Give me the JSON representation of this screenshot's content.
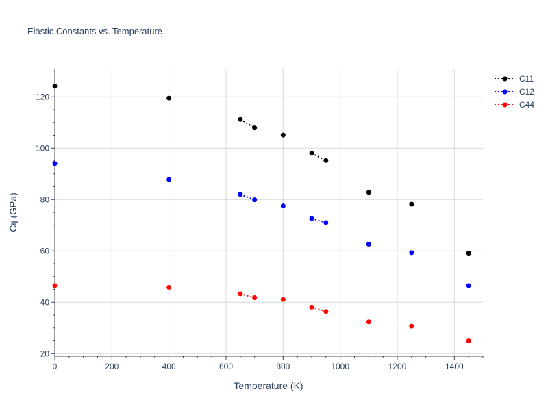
{
  "chart_data": {
    "type": "scatter",
    "title": "Elastic Constants vs. Temperature",
    "xlabel": "Temperature (K)",
    "ylabel": "Cij (GPa)",
    "xlim": [
      0,
      1500
    ],
    "ylim": [
      19,
      131
    ],
    "x_ticks": [
      0,
      200,
      400,
      600,
      800,
      1000,
      1200,
      1400
    ],
    "y_ticks": [
      20,
      40,
      60,
      80,
      100,
      120
    ],
    "grid": true,
    "legend_position": "top-right",
    "series": [
      {
        "name": "C11",
        "color": "#000000",
        "line_style": "dotted",
        "points": [
          [
            0,
            124.2
          ],
          [
            400,
            119.5
          ],
          [
            650,
            111.2
          ],
          [
            700,
            107.9
          ],
          [
            800,
            105.1
          ],
          [
            900,
            98.0
          ],
          [
            950,
            95.2
          ],
          [
            1100,
            82.8
          ],
          [
            1250,
            78.2
          ],
          [
            1450,
            59.1
          ]
        ]
      },
      {
        "name": "C12",
        "color": "#0000ff",
        "line_style": "dotted",
        "points": [
          [
            0,
            94.0
          ],
          [
            400,
            87.8
          ],
          [
            650,
            82.0
          ],
          [
            700,
            79.9
          ],
          [
            800,
            77.5
          ],
          [
            900,
            72.6
          ],
          [
            950,
            71.0
          ],
          [
            1100,
            62.6
          ],
          [
            1250,
            59.3
          ],
          [
            1450,
            46.5
          ]
        ]
      },
      {
        "name": "C44",
        "color": "#ff0000",
        "line_style": "dotted",
        "points": [
          [
            0,
            46.5
          ],
          [
            400,
            45.8
          ],
          [
            650,
            43.3
          ],
          [
            700,
            41.8
          ],
          [
            800,
            41.1
          ],
          [
            900,
            38.1
          ],
          [
            950,
            36.4
          ],
          [
            1100,
            32.4
          ],
          [
            1250,
            30.7
          ],
          [
            1450,
            25.0
          ]
        ]
      }
    ],
    "connected_segments": [
      [
        650,
        700
      ],
      [
        900,
        950
      ]
    ]
  }
}
